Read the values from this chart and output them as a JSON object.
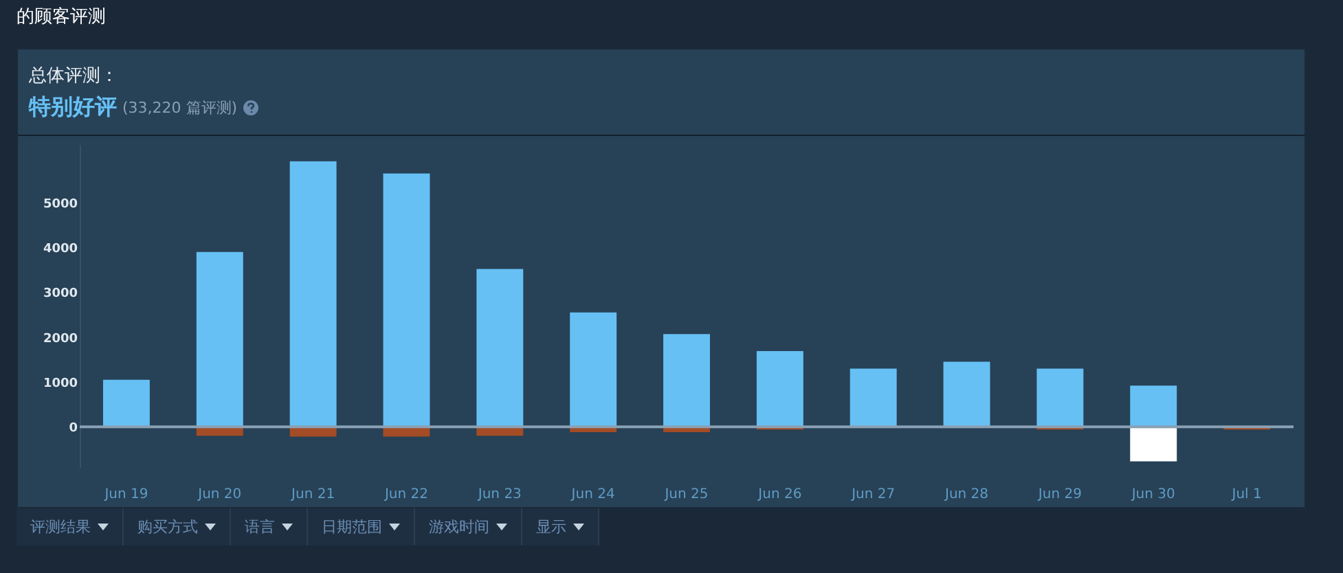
{
  "chart_data": {
    "type": "bar",
    "title": "的顾客评测",
    "subtitle": "总体评测：",
    "annotations": [
      "特别好评",
      "(33,220 篇评测)",
      "评测结果",
      "购买方式",
      "语言",
      "日期范围",
      "游戏时间",
      "显示"
    ],
    "categories": [
      "Jun 19",
      "Jun 20",
      "Jun 21",
      "Jun 22",
      "Jun 23",
      "Jun 24",
      "Jun 25",
      "Jun 26",
      "Jun 27",
      "Jun 28",
      "Jun 29",
      "Jun 30",
      "Jul 1"
    ],
    "stacked": true,
    "series": [
      {
        "color": "#66c0f4",
        "values": [
          1050,
          3900,
          5920,
          5650,
          3520,
          2550,
          2070,
          1690,
          1300,
          1450,
          1300,
          920,
          null
        ]
      },
      {
        "colors": [
          null,
          "#a34c25",
          "#a34c25",
          "#a34c25",
          "#a34c25",
          "#a34c25",
          "#a34c25",
          "#a34c25",
          null,
          null,
          "#a34c25",
          "#ffffff",
          "#a34c25"
        ],
        "values": [
          null,
          -200,
          -220,
          -220,
          -200,
          -120,
          -120,
          -60,
          null,
          null,
          -60,
          -770,
          -60
        ]
      }
    ],
    "ylim": [
      -900,
      6300
    ],
    "yticks": [
      0,
      1000,
      2000,
      3000,
      4000,
      5000
    ],
    "ref_lines": [
      {
        "axis": "y",
        "value": 0,
        "color": "#8aa0b4"
      }
    ]
  }
}
